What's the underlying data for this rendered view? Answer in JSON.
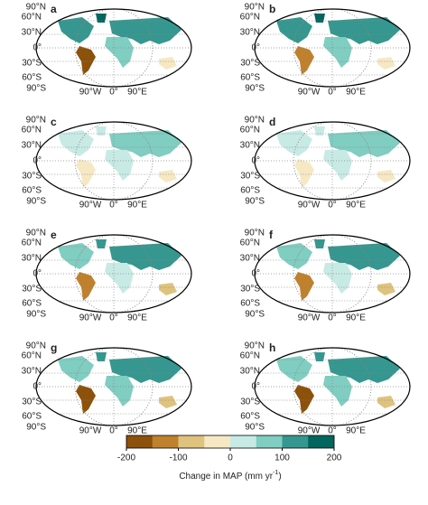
{
  "panels": [
    {
      "label": "a"
    },
    {
      "label": "b"
    },
    {
      "label": "c"
    },
    {
      "label": "d"
    },
    {
      "label": "e"
    },
    {
      "label": "f"
    },
    {
      "label": "g"
    },
    {
      "label": "h"
    }
  ],
  "lat_labels": [
    "90°N",
    "60°N",
    "30°N",
    "0°",
    "30°S",
    "60°S",
    "90°S"
  ],
  "lon_labels": [
    "90°W",
    "0°",
    "90°E"
  ],
  "colorbar": {
    "lim": [
      -200,
      200
    ],
    "ticks": [
      -200,
      -100,
      0,
      100,
      200
    ],
    "colors": [
      "#8c510a",
      "#bf812d",
      "#dfc27d",
      "#f6e8c3",
      "#c7eae5",
      "#80cdc1",
      "#35978f",
      "#01665e"
    ],
    "label": "Change in MAP (mm yr",
    "label_sup": "-1",
    "label_end": ")"
  }
}
